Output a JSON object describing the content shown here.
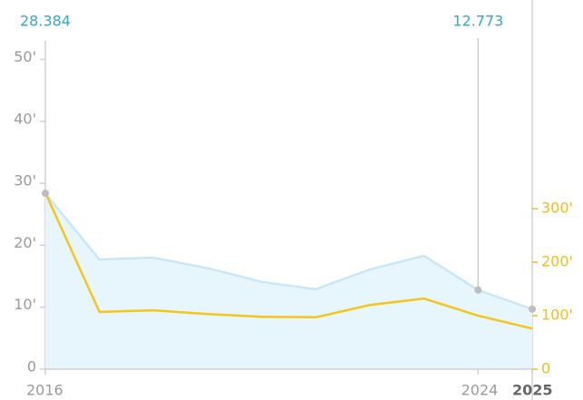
{
  "chart_data": {
    "type": "line",
    "x": [
      2016,
      2017,
      2018,
      2019,
      2020,
      2021,
      2022,
      2023,
      2024,
      2025
    ],
    "series": [
      {
        "name": null,
        "color": "#c9e7f6",
        "fill": "#e7f5fc",
        "area": true,
        "axis": "y",
        "values": [
          28384,
          17700,
          18000,
          16300,
          14100,
          12900,
          16100,
          18300,
          12773,
          9700
        ],
        "value_labels": [
          "28.384",
          null,
          null,
          null,
          null,
          null,
          null,
          null,
          "12.773",
          null
        ]
      },
      {
        "name": null,
        "color": "#f5c518",
        "area": false,
        "axis": "y2",
        "values": [
          330000,
          107000,
          110000,
          103000,
          98000,
          97000,
          120000,
          132000,
          100000,
          76000
        ]
      }
    ],
    "markers": [
      2016,
      2024,
      2025
    ],
    "marker_color": "#bdbdbd",
    "xlim": [
      2016,
      2025
    ],
    "xticks": [
      2016,
      2024,
      2025
    ],
    "ylim": [
      0,
      53000
    ],
    "yticks": [
      0,
      {
        "value": 10000,
        "label": "10'"
      },
      {
        "value": 20000,
        "label": "20'"
      },
      {
        "value": 30000,
        "label": "30'"
      },
      {
        "value": 40000,
        "label": "40'"
      },
      {
        "value": 50000,
        "label": "50'"
      }
    ],
    "y2lim": [
      0,
      614000
    ],
    "y2ticks": [
      0,
      {
        "value": 100000,
        "label": "100'"
      },
      {
        "value": 200000,
        "label": "200'"
      },
      {
        "value": 300000,
        "label": "300'"
      }
    ],
    "y2color": "#f0be1a"
  }
}
